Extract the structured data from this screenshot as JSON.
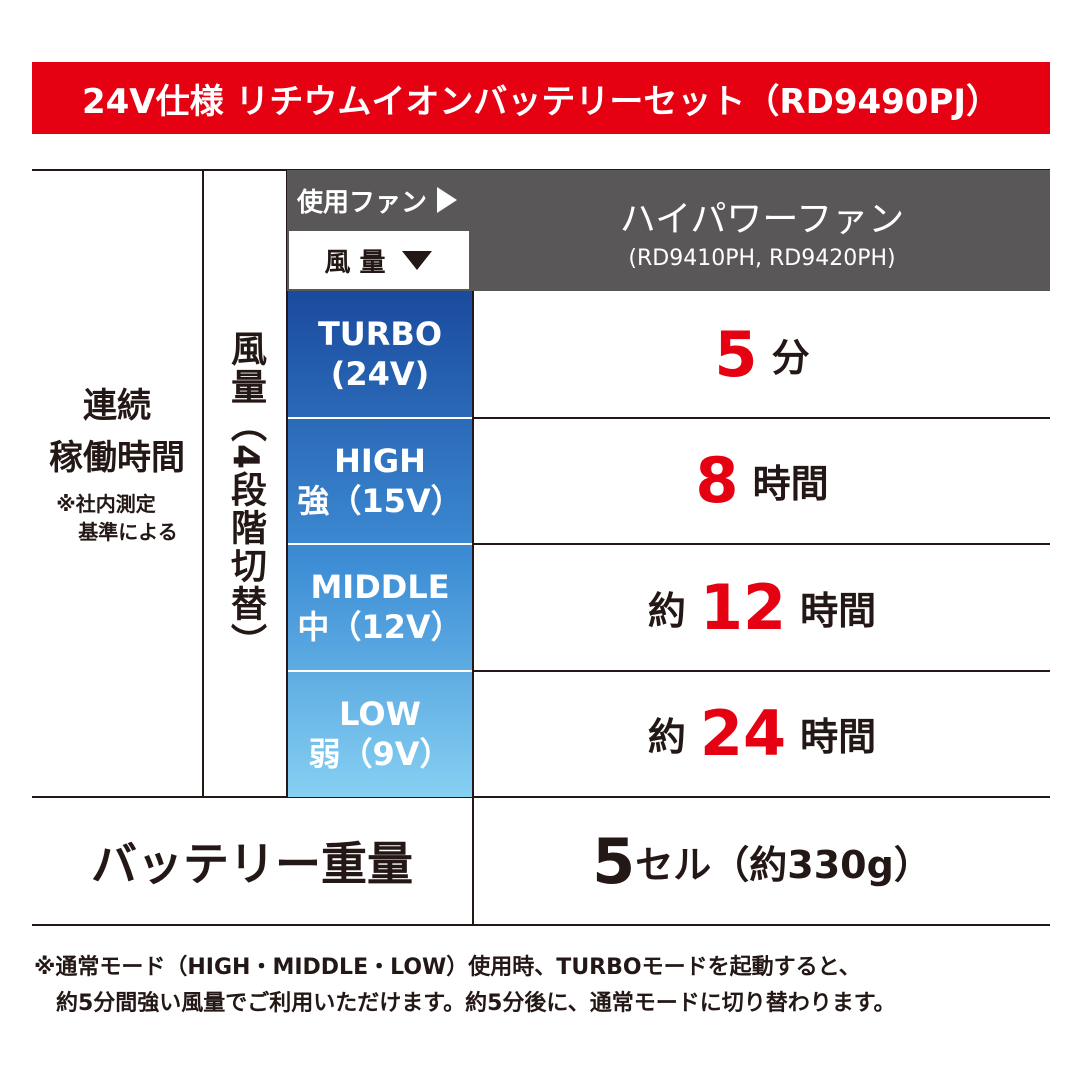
{
  "header": {
    "title": "24V仕様 リチウムイオンバッテリーセット（RD9490PJ）"
  },
  "table": {
    "fan_label": "使用ファン",
    "flow_label": "風 量",
    "fan_name": "ハイパワーファン",
    "fan_models": "(RD9410PH, RD9420PH)",
    "runtime_label": [
      "連続",
      "稼働時間"
    ],
    "runtime_note": [
      "※社内測定",
      "基準による"
    ],
    "flow_vertical": "風量（4段階切替）",
    "rows": [
      {
        "mode": "TURBO",
        "voltage": "(24V)",
        "number": "5",
        "unit": "分"
      },
      {
        "mode": "HIGH",
        "voltage": "強（15V）",
        "number": "8",
        "unit": "時間"
      },
      {
        "mode": "MIDDLE",
        "voltage": "中（12V）",
        "prefix": "約",
        "number": "12",
        "unit": "時間"
      },
      {
        "mode": "LOW",
        "voltage": "弱（9V）",
        "prefix": "約",
        "number": "24",
        "unit": "時間"
      }
    ],
    "weight_label": "バッテリー重量",
    "weight_number": "5",
    "weight_value": "セル（約330g）"
  },
  "footnote": [
    "※通常モード（HIGH・MIDDLE・LOW）使用時、TURBOモードを起動すると、",
    "約5分間強い風量でご利用いただけます。約5分後に、通常モードに切り替わります。"
  ]
}
